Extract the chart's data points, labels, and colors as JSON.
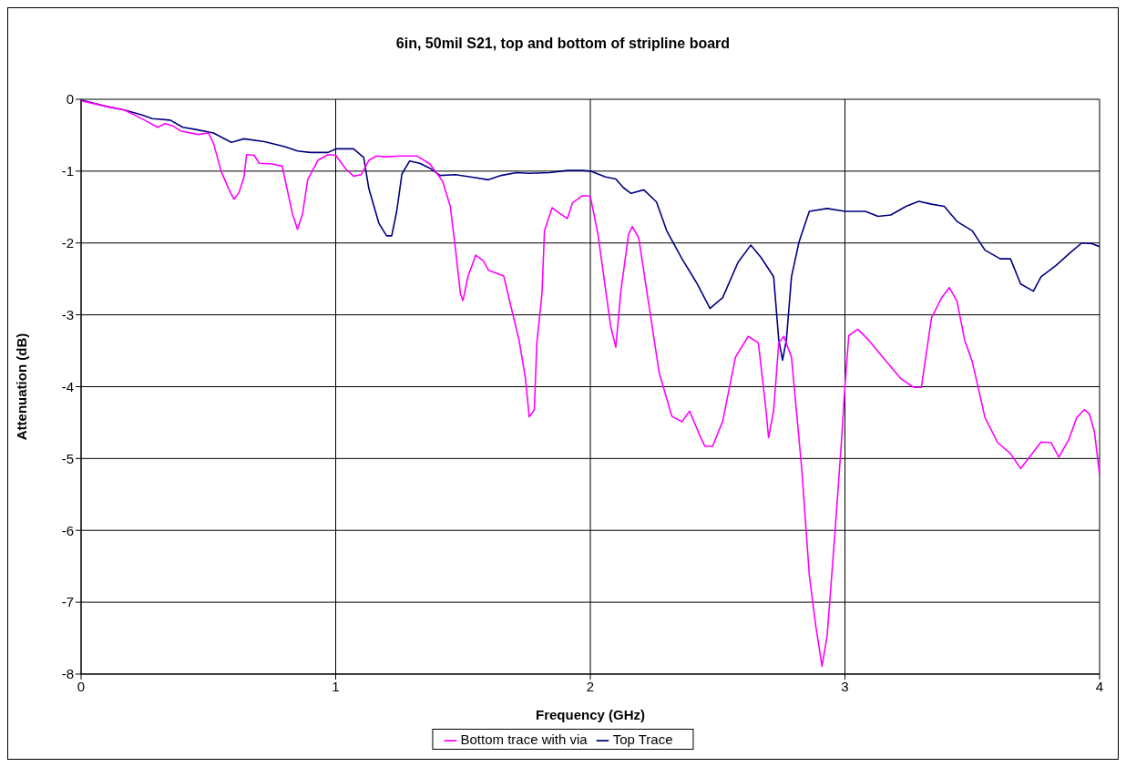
{
  "chart_data": {
    "type": "line",
    "title": "6in, 50mil S21, top and bottom of stripline board",
    "xlabel": "Frequency (GHz)",
    "ylabel": "Attenuation (dB)",
    "xlim": [
      0,
      4
    ],
    "xticks": [
      0,
      1,
      2,
      3,
      4
    ],
    "ylim": [
      -8,
      0
    ],
    "yticks": [
      -8,
      -7,
      -6,
      -5,
      -4,
      -3,
      -2,
      -1,
      0
    ],
    "grid": true,
    "legend": "bottom",
    "marker": "none",
    "line_style": "solid",
    "series": [
      {
        "name": "Top Trace",
        "color": "#000080",
        "x": [
          0,
          0.1,
          0.17,
          0.24,
          0.28,
          0.35,
          0.4,
          0.45,
          0.52,
          0.59,
          0.64,
          0.72,
          0.8,
          0.85,
          0.9,
          0.97,
          1.0,
          1.07,
          1.11,
          1.13,
          1.17,
          1.2,
          1.22,
          1.24,
          1.26,
          1.29,
          1.33,
          1.37,
          1.41,
          1.47,
          1.53,
          1.6,
          1.65,
          1.71,
          1.76,
          1.84,
          1.91,
          1.97,
          2.0,
          2.06,
          2.1,
          2.13,
          2.16,
          2.21,
          2.26,
          2.3,
          2.36,
          2.42,
          2.47,
          2.52,
          2.58,
          2.63,
          2.67,
          2.72,
          2.74,
          2.755,
          2.77,
          2.79,
          2.82,
          2.86,
          2.93,
          3.0,
          3.08,
          3.13,
          3.18,
          3.24,
          3.29,
          3.34,
          3.39,
          3.44,
          3.5,
          3.55,
          3.61,
          3.65,
          3.69,
          3.74,
          3.77,
          3.83,
          3.89,
          3.93,
          3.97,
          4.0
        ],
        "values": [
          -0.01,
          -0.1,
          -0.15,
          -0.22,
          -0.27,
          -0.29,
          -0.39,
          -0.42,
          -0.47,
          -0.6,
          -0.55,
          -0.59,
          -0.66,
          -0.72,
          -0.74,
          -0.74,
          -0.69,
          -0.69,
          -0.81,
          -1.24,
          -1.73,
          -1.9,
          -1.9,
          -1.55,
          -1.04,
          -0.86,
          -0.89,
          -0.96,
          -1.06,
          -1.05,
          -1.08,
          -1.12,
          -1.06,
          -1.02,
          -1.03,
          -1.02,
          -0.99,
          -0.99,
          -1.0,
          -1.08,
          -1.11,
          -1.23,
          -1.31,
          -1.26,
          -1.43,
          -1.83,
          -2.22,
          -2.57,
          -2.91,
          -2.76,
          -2.27,
          -2.03,
          -2.2,
          -2.47,
          -3.35,
          -3.63,
          -3.35,
          -2.47,
          -1.98,
          -1.56,
          -1.52,
          -1.56,
          -1.56,
          -1.63,
          -1.61,
          -1.49,
          -1.42,
          -1.46,
          -1.49,
          -1.7,
          -1.83,
          -2.1,
          -2.22,
          -2.22,
          -2.57,
          -2.67,
          -2.47,
          -2.31,
          -2.12,
          -2.0,
          -2.01,
          -2.05
        ]
      },
      {
        "name": "Bottom trace with via",
        "color": "#ff00ff",
        "x": [
          0,
          0.1,
          0.17,
          0.25,
          0.3,
          0.33,
          0.36,
          0.39,
          0.46,
          0.5,
          0.52,
          0.55,
          0.58,
          0.6,
          0.62,
          0.64,
          0.65,
          0.68,
          0.7,
          0.75,
          0.79,
          0.8,
          0.83,
          0.85,
          0.87,
          0.89,
          0.93,
          0.97,
          1.0,
          1.04,
          1.07,
          1.1,
          1.13,
          1.16,
          1.2,
          1.25,
          1.32,
          1.37,
          1.42,
          1.45,
          1.47,
          1.49,
          1.5,
          1.52,
          1.55,
          1.58,
          1.6,
          1.63,
          1.66,
          1.69,
          1.72,
          1.745,
          1.76,
          1.78,
          1.79,
          1.81,
          1.82,
          1.85,
          1.88,
          1.91,
          1.93,
          1.97,
          2.0,
          2.03,
          2.08,
          2.1,
          2.12,
          2.15,
          2.165,
          2.19,
          2.23,
          2.27,
          2.32,
          2.36,
          2.39,
          2.43,
          2.45,
          2.48,
          2.52,
          2.57,
          2.62,
          2.66,
          2.69,
          2.7,
          2.72,
          2.74,
          2.76,
          2.79,
          2.83,
          2.86,
          2.885,
          2.91,
          2.93,
          2.96,
          2.985,
          3.0,
          3.015,
          3.05,
          3.09,
          3.16,
          3.22,
          3.27,
          3.3,
          3.34,
          3.38,
          3.41,
          3.44,
          3.47,
          3.5,
          3.55,
          3.6,
          3.65,
          3.69,
          3.74,
          3.77,
          3.81,
          3.84,
          3.88,
          3.91,
          3.94,
          3.96,
          3.98,
          4.0
        ],
        "values": [
          -0.02,
          -0.1,
          -0.15,
          -0.29,
          -0.39,
          -0.34,
          -0.37,
          -0.44,
          -0.49,
          -0.47,
          -0.61,
          -1.0,
          -1.25,
          -1.39,
          -1.3,
          -1.08,
          -0.77,
          -0.78,
          -0.89,
          -0.9,
          -0.93,
          -1.1,
          -1.59,
          -1.81,
          -1.59,
          -1.12,
          -0.85,
          -0.77,
          -0.78,
          -0.97,
          -1.07,
          -1.05,
          -0.85,
          -0.79,
          -0.8,
          -0.79,
          -0.79,
          -0.9,
          -1.14,
          -1.49,
          -2.07,
          -2.71,
          -2.8,
          -2.46,
          -2.17,
          -2.25,
          -2.38,
          -2.42,
          -2.46,
          -2.91,
          -3.35,
          -3.88,
          -4.42,
          -4.32,
          -3.39,
          -2.71,
          -1.83,
          -1.51,
          -1.59,
          -1.66,
          -1.44,
          -1.34,
          -1.35,
          -1.88,
          -3.16,
          -3.45,
          -2.67,
          -1.88,
          -1.77,
          -1.93,
          -2.86,
          -3.8,
          -4.41,
          -4.49,
          -4.34,
          -4.68,
          -4.83,
          -4.83,
          -4.48,
          -3.59,
          -3.3,
          -3.39,
          -4.33,
          -4.71,
          -4.33,
          -3.39,
          -3.3,
          -3.59,
          -5.13,
          -6.62,
          -7.32,
          -7.89,
          -7.47,
          -6.07,
          -4.83,
          -3.99,
          -3.29,
          -3.2,
          -3.34,
          -3.64,
          -3.89,
          -4.01,
          -4.01,
          -3.04,
          -2.76,
          -2.62,
          -2.81,
          -3.35,
          -3.65,
          -4.43,
          -4.78,
          -4.93,
          -5.14,
          -4.91,
          -4.77,
          -4.78,
          -4.98,
          -4.73,
          -4.43,
          -4.32,
          -4.38,
          -4.63,
          -5.23
        ]
      }
    ]
  }
}
